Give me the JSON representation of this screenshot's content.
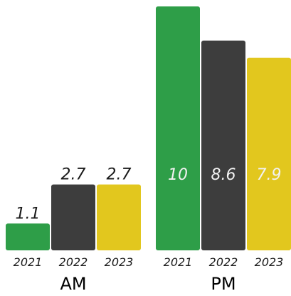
{
  "chart_data": {
    "type": "bar",
    "title": "",
    "ylim": [
      0,
      10
    ],
    "series_colors": [
      "#2e9e48",
      "#3d3d3d",
      "#e2c71e"
    ],
    "groups": [
      {
        "label": "AM",
        "bars": [
          {
            "year": "2021",
            "value": 1.1,
            "display": "1.1"
          },
          {
            "year": "2022",
            "value": 2.7,
            "display": "2.7"
          },
          {
            "year": "2023",
            "value": 2.7,
            "display": "2.7"
          }
        ]
      },
      {
        "label": "PM",
        "bars": [
          {
            "year": "2021",
            "value": 10,
            "display": "10"
          },
          {
            "year": "2022",
            "value": 8.6,
            "display": "8.6"
          },
          {
            "year": "2023",
            "value": 7.9,
            "display": "7.9"
          }
        ]
      }
    ]
  }
}
